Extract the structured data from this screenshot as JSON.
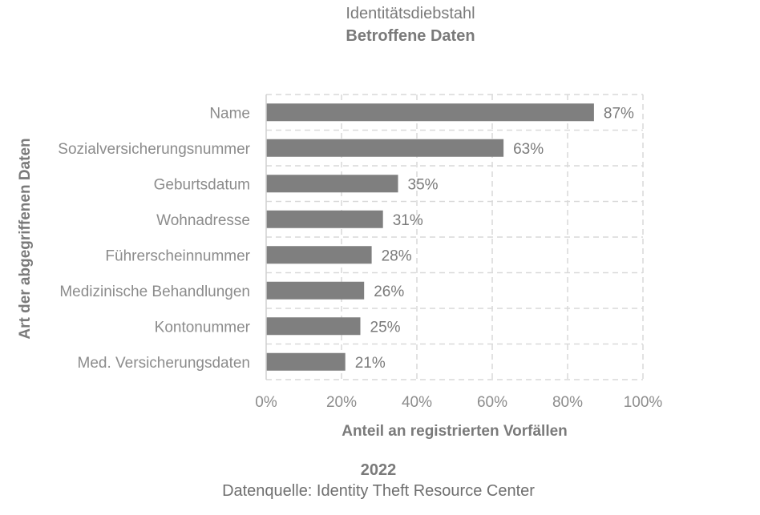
{
  "chart_data": {
    "type": "bar",
    "orientation": "horizontal",
    "title": "Identitätsdiebstahl",
    "subtitle": "Betroffene Daten",
    "xlabel": "Anteil an registrierten Vorfällen",
    "ylabel": "Art der abgegriffenen Daten",
    "categories": [
      "Name",
      "Sozialversicherungsnummer",
      "Geburtsdatum",
      "Wohnadresse",
      "Führerscheinnummer",
      "Medizinische Behandlungen",
      "Kontonummer",
      "Med. Versicherungsdaten"
    ],
    "values": [
      87,
      63,
      35,
      31,
      28,
      26,
      25,
      21
    ],
    "value_labels": [
      "87%",
      "63%",
      "35%",
      "31%",
      "28%",
      "26%",
      "25%",
      "21%"
    ],
    "xlim": [
      0,
      100
    ],
    "xticks": [
      "0%",
      "20%",
      "40%",
      "60%",
      "80%",
      "100%"
    ],
    "grid": true,
    "legend": "none",
    "bar_color": "#7f7f7f",
    "grid_color": "#d9d9d9"
  },
  "footer": {
    "year": "2022",
    "source": "Datenquelle: Identity Theft Resource Center"
  }
}
